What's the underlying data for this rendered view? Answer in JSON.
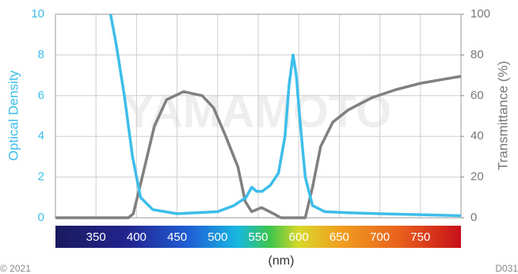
{
  "chart_data": {
    "type": "line",
    "xlabel": "(nm)",
    "ylabel": "Optical Density",
    "y2label": "Transmittance (%)",
    "watermark": "YAMAMOTO",
    "footer_left": "© 2021",
    "footer_right": "D031",
    "xlim": [
      300,
      800
    ],
    "xticks": [
      350,
      400,
      450,
      500,
      550,
      600,
      650,
      700,
      750
    ],
    "ylim": [
      0,
      10
    ],
    "yticks": [
      0,
      2,
      4,
      6,
      8,
      10
    ],
    "y2lim": [
      0,
      100
    ],
    "y2ticks": [
      0,
      20,
      40,
      60,
      80,
      100
    ],
    "grid": true,
    "series": [
      {
        "color": "#3dbde9",
        "x": [
          368,
          375,
          385,
          395,
          405,
          420,
          450,
          500,
          520,
          535,
          542,
          548,
          555,
          565,
          575,
          583,
          588,
          593,
          597,
          601,
          608,
          617,
          632,
          660,
          700,
          750,
          800
        ],
        "values": [
          10,
          8.5,
          6,
          3,
          1.0,
          0.4,
          0.2,
          0.3,
          0.6,
          1.0,
          1.5,
          1.3,
          1.3,
          1.6,
          2.2,
          4,
          6.5,
          8,
          7,
          5,
          2,
          0.6,
          0.3,
          0.25,
          0.2,
          0.15,
          0.1
        ]
      },
      {
        "color": "#808080",
        "axis": "y2",
        "x": [
          300,
          390,
          396,
          407,
          422,
          437,
          458,
          481,
          495,
          510,
          525,
          534,
          542,
          554,
          569,
          578,
          608,
          617,
          627,
          642,
          661,
          690,
          720,
          749,
          778,
          800
        ],
        "values": [
          0,
          0,
          2,
          20,
          45,
          58,
          62,
          60,
          54,
          40,
          25,
          8,
          3,
          5,
          2,
          0,
          0,
          15,
          35,
          47,
          53,
          59,
          63,
          66,
          68,
          69.5
        ]
      }
    ]
  }
}
